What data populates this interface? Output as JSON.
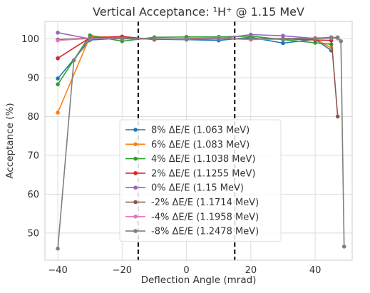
{
  "chart_data": {
    "type": "line",
    "title": "Vertical Acceptance: ¹H⁺ @ 1.15 MeV",
    "xlabel": "Deflection Angle (mrad)",
    "ylabel": "Acceptance (%)",
    "xlim": [
      -44,
      51.5
    ],
    "ylim": [
      43,
      104.5
    ],
    "xticks": [
      -40,
      -20,
      0,
      20,
      40
    ],
    "xtick_labels": [
      "−40",
      "−20",
      "0",
      "20",
      "40"
    ],
    "yticks": [
      50,
      60,
      70,
      80,
      90,
      100
    ],
    "ytick_labels": [
      "50",
      "60",
      "70",
      "80",
      "90",
      "100"
    ],
    "grid": true,
    "legend_position": "lower-center",
    "vlines": [
      {
        "x": -15,
        "style": "dashed",
        "color": "#000000"
      },
      {
        "x": 15,
        "style": "dashed",
        "color": "#000000"
      }
    ],
    "series": [
      {
        "name": "8% ΔE/E (1.063 MeV)",
        "color": "#1f77b4",
        "x": [
          -40,
          -30,
          -20,
          -10,
          0,
          10,
          20,
          30,
          40,
          45
        ],
        "y": [
          89.8,
          99.7,
          100.2,
          99.9,
          99.8,
          99.6,
          100.4,
          98.9,
          99.9,
          97.0
        ]
      },
      {
        "name": "6% ΔE/E (1.083 MeV)",
        "color": "#ff7f0e",
        "x": [
          -40,
          -30,
          -20,
          -10,
          0,
          10,
          20,
          30,
          40,
          45
        ],
        "y": [
          81.0,
          100.6,
          100.3,
          100.0,
          99.9,
          100.1,
          100.0,
          99.9,
          100.0,
          97.6
        ]
      },
      {
        "name": "4% ΔE/E (1.1038 MeV)",
        "color": "#2ca02c",
        "x": [
          -40,
          -30,
          -20,
          -10,
          0,
          10,
          20,
          30,
          40,
          45
        ],
        "y": [
          88.3,
          100.9,
          99.4,
          100.4,
          100.5,
          100.5,
          100.7,
          99.8,
          99.0,
          98.6
        ]
      },
      {
        "name": "2% ΔE/E (1.1255 MeV)",
        "color": "#d62728",
        "x": [
          -40,
          -30,
          -20,
          -10,
          0,
          10,
          20,
          30,
          40,
          45
        ],
        "y": [
          95.0,
          100.3,
          100.6,
          99.8,
          100.1,
          100.2,
          99.9,
          100.0,
          99.7,
          99.6
        ]
      },
      {
        "name": "0% ΔE/E (1.15 MeV)",
        "color": "#9467bd",
        "x": [
          -40,
          -30,
          -20,
          -10,
          0,
          10,
          20,
          30,
          40,
          45
        ],
        "y": [
          101.6,
          100.0,
          100.2,
          100.0,
          100.0,
          100.0,
          101.1,
          100.8,
          100.1,
          100.4
        ]
      },
      {
        "name": "-2% ΔE/E (1.1714 MeV)",
        "color": "#8c564b",
        "x": [
          -40,
          -30,
          -20,
          -10,
          0,
          10,
          20,
          30,
          40,
          45,
          47
        ],
        "y": [
          99.8,
          100.2,
          100.1,
          100.0,
          100.0,
          100.1,
          100.0,
          100.1,
          100.2,
          100.3,
          80.0
        ]
      },
      {
        "name": "-4% ΔE/E (1.1958 MeV)",
        "color": "#e377c2",
        "x": [
          -40,
          -30,
          -20,
          -10,
          0,
          10,
          20,
          30,
          40,
          45,
          47
        ],
        "y": [
          99.6,
          100.1,
          100.0,
          100.0,
          100.0,
          100.2,
          99.8,
          100.0,
          100.1,
          100.2,
          100.1
        ]
      },
      {
        "name": "-8% ΔE/E (1.2478 MeV)",
        "color": "#7f7f7f",
        "x": [
          -40,
          -35,
          -30,
          -20,
          -10,
          0,
          10,
          20,
          30,
          40,
          45,
          47,
          48,
          49
        ],
        "y": [
          46.0,
          94.5,
          100.3,
          100.0,
          100.0,
          100.0,
          100.0,
          100.0,
          100.0,
          100.0,
          100.3,
          100.4,
          99.4,
          46.5
        ]
      }
    ]
  }
}
